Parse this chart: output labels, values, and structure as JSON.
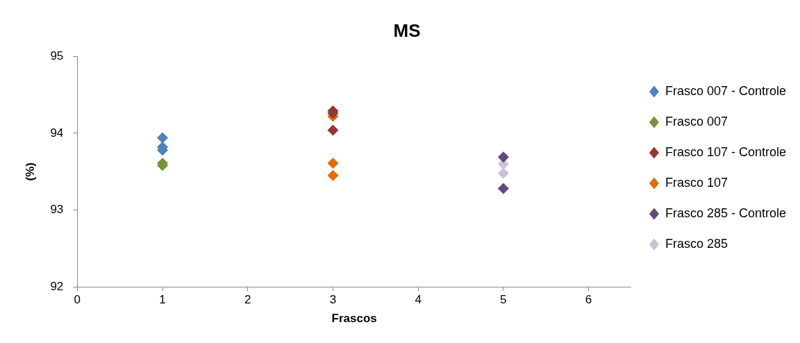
{
  "chart_data": {
    "type": "scatter",
    "title": "MS",
    "xlabel": "Frascos",
    "ylabel": "(%)",
    "xlim": [
      0,
      6.5
    ],
    "xticks": [
      0,
      1,
      2,
      3,
      4,
      5,
      6
    ],
    "ylim": [
      92,
      95
    ],
    "yticks": [
      92,
      93,
      94,
      95
    ],
    "grid": false,
    "legend": "right",
    "marker": "diamond",
    "series": [
      {
        "name": "Frasco 007 - Controle",
        "color": "#4f81bd",
        "x": [
          1,
          1,
          1
        ],
        "values": [
          93.94,
          93.82,
          93.78
        ]
      },
      {
        "name": "Frasco 007",
        "color": "#77933c",
        "x": [
          1,
          1
        ],
        "values": [
          93.61,
          93.58
        ]
      },
      {
        "name": "Frasco 107 - Controle",
        "color": "#953735",
        "x": [
          3,
          3,
          3
        ],
        "values": [
          94.29,
          94.26,
          94.04
        ]
      },
      {
        "name": "Frasco 107",
        "color": "#e46c0a",
        "x": [
          3,
          3,
          3
        ],
        "values": [
          94.22,
          93.61,
          93.45
        ]
      },
      {
        "name": "Frasco 285 - Controle",
        "color": "#604a7b",
        "x": [
          5,
          5
        ],
        "values": [
          93.69,
          93.28
        ]
      },
      {
        "name": "Frasco 285",
        "color": "#ccc1da",
        "x": [
          5,
          5
        ],
        "values": [
          93.6,
          93.48
        ]
      }
    ]
  }
}
